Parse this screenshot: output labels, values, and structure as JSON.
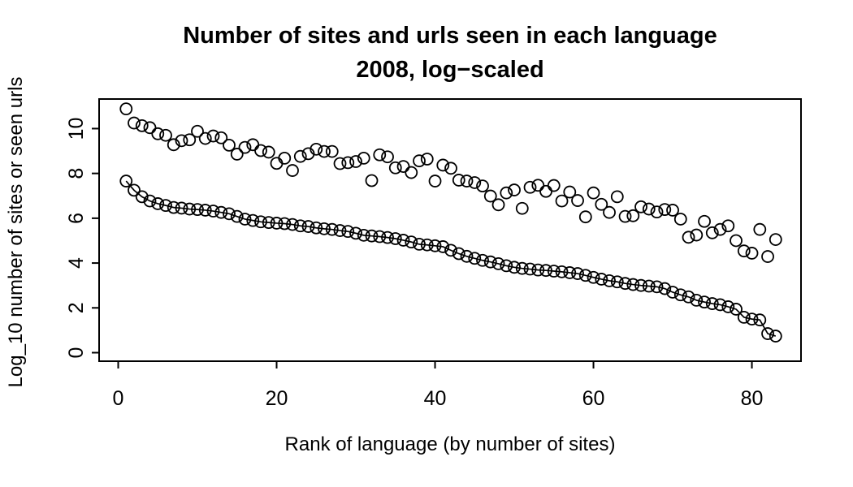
{
  "page": {
    "background": "#ffffff",
    "foreground": "#000000"
  },
  "chart_data": {
    "type": "scatter",
    "title_line1": "Number of sites and urls seen in each language",
    "title_line2": "2008, log−scaled",
    "xlabel": "Rank of language (by number of sites)",
    "ylabel": "Log_10 number of sites or seen urls",
    "x_ticks": [
      0,
      20,
      40,
      60,
      80
    ],
    "y_ticks": [
      0,
      2,
      4,
      6,
      8,
      10
    ],
    "xlim": [
      -2.41,
      86.2
    ],
    "ylim": [
      -0.38,
      11.32
    ],
    "x_is_rank_starting_at_1": true,
    "marker": "open-circle",
    "grid": false,
    "legend_position": "none",
    "point_color": "#000000",
    "series": [
      {
        "name": "urls seen",
        "style": "points",
        "values": [
          10.88,
          10.25,
          10.13,
          10.04,
          9.77,
          9.7,
          9.28,
          9.46,
          9.5,
          9.88,
          9.56,
          9.67,
          9.59,
          9.26,
          8.86,
          9.16,
          9.28,
          9.02,
          8.95,
          8.45,
          8.68,
          8.13,
          8.76,
          8.88,
          9.08,
          8.98,
          8.98,
          8.44,
          8.48,
          8.53,
          8.68,
          7.68,
          8.83,
          8.74,
          8.25,
          8.31,
          8.04,
          8.56,
          8.64,
          7.66,
          8.37,
          8.23,
          7.7,
          7.66,
          7.59,
          7.44,
          6.99,
          6.6,
          7.13,
          7.26,
          6.44,
          7.38,
          7.47,
          7.2,
          7.46,
          6.77,
          7.17,
          6.79,
          6.06,
          7.13,
          6.62,
          6.26,
          6.96,
          6.08,
          6.11,
          6.51,
          6.41,
          6.28,
          6.39,
          6.36,
          5.96,
          5.15,
          5.25,
          5.86,
          5.35,
          5.5,
          5.66,
          5.0,
          4.54,
          4.44,
          5.5,
          4.29,
          5.05
        ]
      },
      {
        "name": "sites",
        "style": "points-and-line",
        "values": [
          7.66,
          7.25,
          6.96,
          6.77,
          6.65,
          6.57,
          6.48,
          6.45,
          6.41,
          6.39,
          6.36,
          6.32,
          6.26,
          6.2,
          6.08,
          5.96,
          5.9,
          5.84,
          5.81,
          5.78,
          5.76,
          5.72,
          5.66,
          5.63,
          5.57,
          5.53,
          5.5,
          5.45,
          5.41,
          5.33,
          5.24,
          5.21,
          5.18,
          5.14,
          5.09,
          5.02,
          4.94,
          4.84,
          4.81,
          4.77,
          4.73,
          4.57,
          4.42,
          4.3,
          4.21,
          4.12,
          4.05,
          3.97,
          3.88,
          3.81,
          3.76,
          3.73,
          3.69,
          3.67,
          3.64,
          3.61,
          3.57,
          3.53,
          3.45,
          3.36,
          3.28,
          3.21,
          3.16,
          3.09,
          3.04,
          3.0,
          2.97,
          2.94,
          2.86,
          2.7,
          2.58,
          2.49,
          2.34,
          2.26,
          2.19,
          2.14,
          2.05,
          1.94,
          1.58,
          1.5,
          1.46,
          0.85,
          0.74
        ]
      }
    ]
  }
}
